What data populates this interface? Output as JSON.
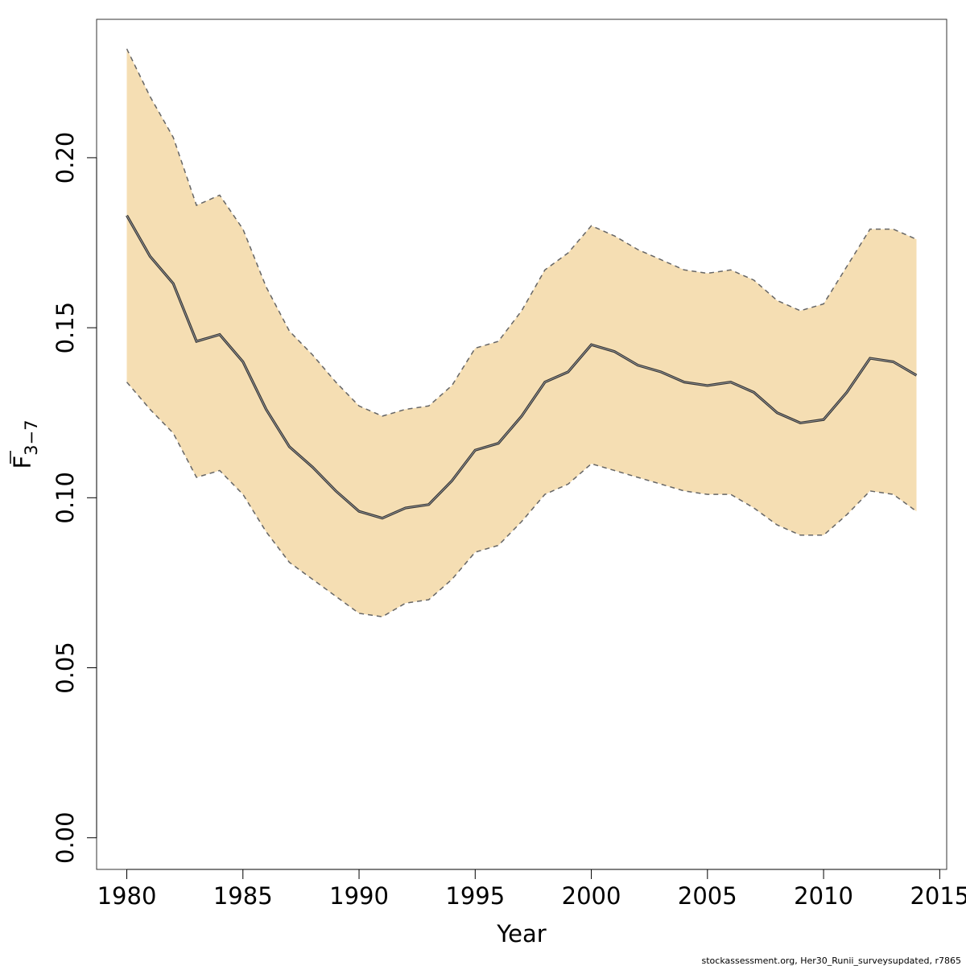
{
  "chart_data": {
    "type": "line",
    "title": "",
    "xlabel": "Year",
    "ylabel": {
      "main": "F",
      "sub": "3−7"
    },
    "xlim": [
      1978.7,
      2015.3
    ],
    "ylim": [
      -0.0093,
      0.2407
    ],
    "x_ticks": [
      1980,
      1985,
      1990,
      1995,
      2000,
      2005,
      2010,
      2015
    ],
    "x_tick_labels": [
      "1980",
      "1985",
      "1990",
      "1995",
      "2000",
      "2005",
      "2010",
      "2015"
    ],
    "y_ticks": [
      0.0,
      0.05,
      0.1,
      0.15,
      0.2
    ],
    "y_tick_labels": [
      "0.00",
      "0.05",
      "0.10",
      "0.15",
      "0.20"
    ],
    "grid": false,
    "legend": "none",
    "x": [
      1980,
      1981,
      1982,
      1983,
      1984,
      1985,
      1986,
      1987,
      1988,
      1989,
      1990,
      1991,
      1992,
      1993,
      1994,
      1995,
      1996,
      1997,
      1998,
      1999,
      2000,
      2001,
      2002,
      2003,
      2004,
      2005,
      2006,
      2007,
      2008,
      2009,
      2010,
      2011,
      2012,
      2013,
      2014
    ],
    "series": [
      {
        "role": "estimate",
        "values": [
          0.183,
          0.171,
          0.163,
          0.146,
          0.148,
          0.14,
          0.126,
          0.115,
          0.109,
          0.102,
          0.096,
          0.094,
          0.097,
          0.098,
          0.105,
          0.114,
          0.116,
          0.124,
          0.134,
          0.137,
          0.145,
          0.143,
          0.139,
          0.137,
          0.134,
          0.133,
          0.134,
          0.131,
          0.125,
          0.122,
          0.123,
          0.131,
          0.141,
          0.14,
          0.136
        ]
      },
      {
        "role": "upper",
        "values": [
          0.232,
          0.218,
          0.206,
          0.186,
          0.189,
          0.179,
          0.162,
          0.149,
          0.142,
          0.134,
          0.127,
          0.124,
          0.126,
          0.127,
          0.133,
          0.144,
          0.146,
          0.155,
          0.167,
          0.172,
          0.18,
          0.177,
          0.173,
          0.17,
          0.167,
          0.166,
          0.167,
          0.164,
          0.158,
          0.155,
          0.157,
          0.168,
          0.179,
          0.179,
          0.176
        ]
      },
      {
        "role": "lower",
        "values": [
          0.134,
          0.126,
          0.119,
          0.106,
          0.108,
          0.101,
          0.09,
          0.081,
          0.076,
          0.071,
          0.066,
          0.065,
          0.069,
          0.07,
          0.076,
          0.084,
          0.086,
          0.093,
          0.101,
          0.104,
          0.11,
          0.108,
          0.106,
          0.104,
          0.102,
          0.101,
          0.101,
          0.097,
          0.092,
          0.089,
          0.089,
          0.095,
          0.102,
          0.101,
          0.096
        ]
      }
    ],
    "colors": {
      "band": "#f5deb3",
      "line": "#555555",
      "bounds": "#666666",
      "axis": "#000000"
    }
  },
  "footer": {
    "credit": "stockassessment.org, Her30_Runii_surveysupdated, r7865"
  }
}
